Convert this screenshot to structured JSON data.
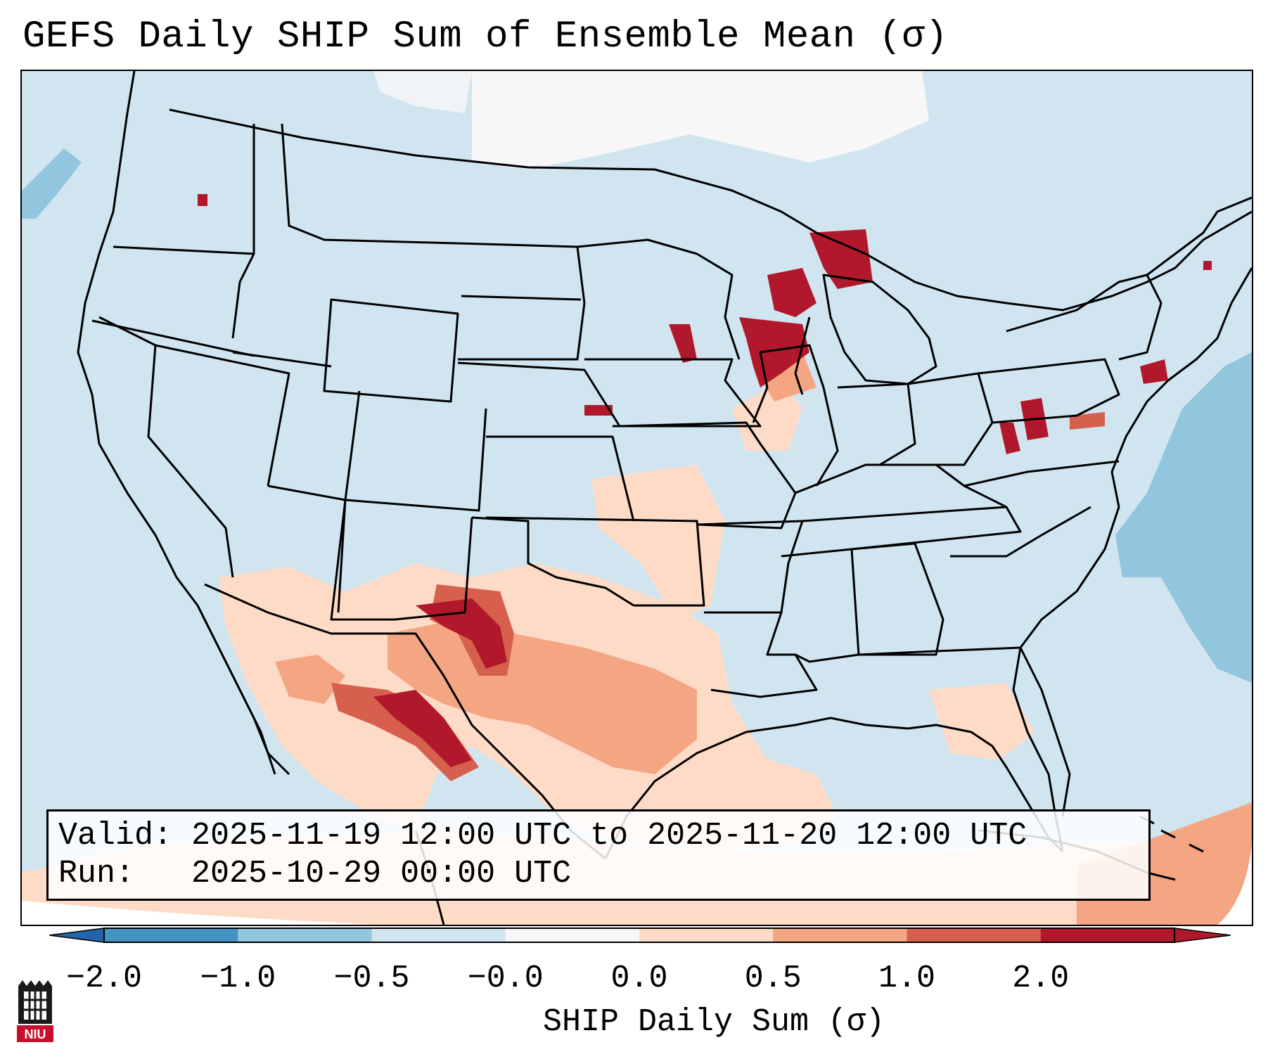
{
  "title": "GEFS Daily SHIP Sum of Ensemble Mean (σ)",
  "info": {
    "valid_label": "Valid:",
    "valid_value": "2025-11-19 12:00 UTC to 2025-11-20 12:00 UTC",
    "run_label": "Run:",
    "run_value": "2025-10-29 00:00 UTC"
  },
  "colorbar": {
    "label": "SHIP Daily Sum (σ)",
    "ticks": [
      "−2.0",
      "−1.0",
      "−0.5",
      "−0.0",
      "0.0",
      "0.5",
      "1.0",
      "2.0"
    ],
    "colors": [
      "#4393c3",
      "#92c5de",
      "#d1e5f0",
      "#f7f7f7",
      "#fddbc7",
      "#f4a582",
      "#d6604d",
      "#b2182b"
    ],
    "under_color": "#2166ac",
    "over_color": "#b2182b"
  },
  "logo": {
    "text": "NIU",
    "icon": "university-castle-icon"
  }
}
